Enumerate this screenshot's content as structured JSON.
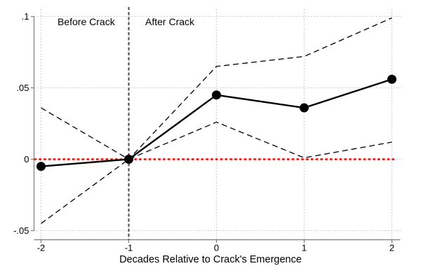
{
  "chart_data": {
    "type": "line",
    "title": "",
    "xlabel": "Decades Relative to Crack's Emergence",
    "ylabel": "",
    "x": [
      -2,
      -1,
      0,
      1,
      2
    ],
    "series": [
      {
        "name": "coefficient",
        "line": "solid",
        "marker": "circle",
        "color": "#000000",
        "values": [
          -0.005,
          0,
          0.045,
          0.036,
          0.056
        ]
      },
      {
        "name": "ci-upper",
        "line": "dashed",
        "marker": "none",
        "color": "#000000",
        "values": [
          0.036,
          0,
          0.065,
          0.072,
          0.099
        ]
      },
      {
        "name": "ci-lower",
        "line": "dashed",
        "marker": "none",
        "color": "#000000",
        "values": [
          -0.045,
          0,
          0.026,
          0.001,
          0.012
        ]
      }
    ],
    "xlim": [
      -2,
      2
    ],
    "ylim": [
      -0.05,
      0.1
    ],
    "xtick_values": [
      -2,
      -1,
      0,
      1,
      2
    ],
    "xtick_labels": [
      "-2",
      "-1",
      "0",
      "1",
      "2"
    ],
    "ytick_values": [
      0.1,
      0.05,
      0,
      -0.05
    ],
    "ytick_labels": [
      ".1",
      ".05",
      "0",
      "-.05"
    ],
    "grid": "dotted",
    "legend": "none",
    "annotations": [
      "Before Crack",
      "After Crack"
    ],
    "reference_lines": [
      {
        "name": "crack-emergence-line",
        "orientation": "vertical",
        "x": -1,
        "color": "#555555",
        "style": "dashed"
      },
      {
        "name": "zero-line",
        "orientation": "horizontal",
        "y": 0,
        "color": "#ff0000",
        "style": "dotted"
      }
    ],
    "colors": {
      "series": "#000000",
      "zero_line": "#ff0000",
      "event_line": "#555555",
      "grid": "#c4c4c4"
    }
  }
}
